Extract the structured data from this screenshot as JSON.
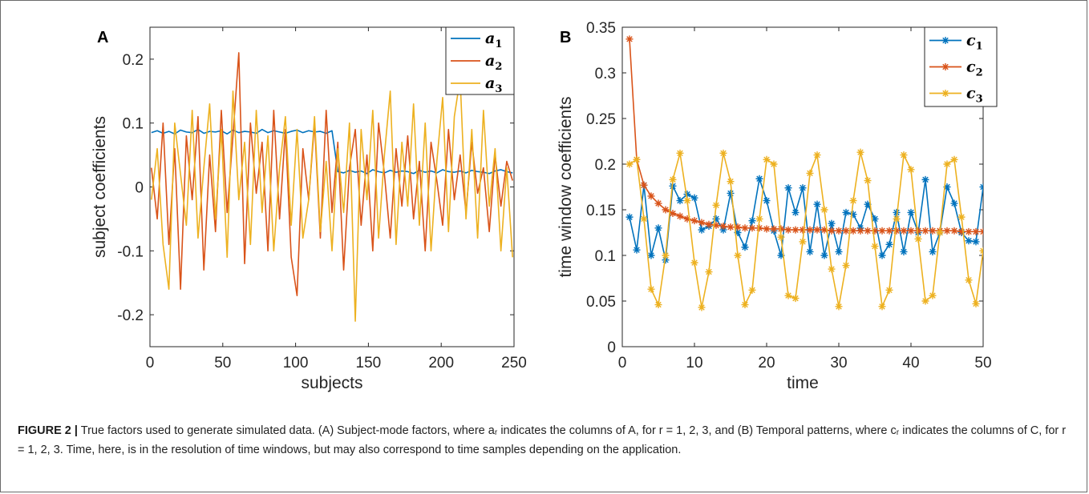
{
  "caption": {
    "label": "FIGURE 2 |",
    "text": "True factors used to generate simulated data. (A) Subject-mode factors, where aᵣ indicates the columns of A, for r = 1, 2, 3, and (B) Temporal patterns, where cᵣ indicates the columns of C, for r = 1, 2, 3. Time, here, is in the resolution of time windows, but may also correspond to time samples depending on the application."
  },
  "chart_data": [
    {
      "panel_label": "A",
      "type": "line",
      "xlabel": "subjects",
      "ylabel": "subject coefficients",
      "xlim": [
        0,
        250
      ],
      "ylim": [
        -0.25,
        0.25
      ],
      "xticks": [
        0,
        50,
        100,
        150,
        200,
        250
      ],
      "xtick_labels": [
        "0",
        "50",
        "100",
        "150",
        "200",
        "250"
      ],
      "yticks": [
        -0.2,
        -0.1,
        0,
        0.1,
        0.2
      ],
      "ytick_labels": [
        "-0.2",
        "-0.1",
        "0",
        "0.1",
        "0.2"
      ],
      "grid": false,
      "legend_position": "top-right",
      "x": [
        1,
        5,
        9,
        13,
        17,
        21,
        25,
        29,
        33,
        37,
        41,
        45,
        49,
        53,
        57,
        61,
        65,
        69,
        73,
        77,
        81,
        85,
        89,
        93,
        97,
        101,
        105,
        109,
        113,
        117,
        121,
        125,
        129,
        133,
        137,
        141,
        145,
        149,
        153,
        157,
        161,
        165,
        169,
        173,
        177,
        181,
        185,
        189,
        193,
        197,
        201,
        205,
        209,
        213,
        217,
        221,
        225,
        229,
        233,
        237,
        241,
        245,
        249
      ],
      "series": [
        {
          "name": "a",
          "sub": "1",
          "color": "#0072BD",
          "values": [
            0.085,
            0.088,
            0.084,
            0.087,
            0.083,
            0.089,
            0.086,
            0.085,
            0.09,
            0.084,
            0.087,
            0.086,
            0.088,
            0.083,
            0.089,
            0.085,
            0.087,
            0.086,
            0.084,
            0.09,
            0.085,
            0.088,
            0.086,
            0.084,
            0.087,
            0.089,
            0.085,
            0.088,
            0.086,
            0.087,
            0.084,
            0.088,
            0.024,
            0.022,
            0.026,
            0.023,
            0.025,
            0.021,
            0.027,
            0.024,
            0.022,
            0.026,
            0.023,
            0.025,
            0.024,
            0.021,
            0.026,
            0.023,
            0.025,
            0.022,
            0.027,
            0.024,
            0.023,
            0.025,
            0.022,
            0.026,
            0.024,
            0.023,
            0.021,
            0.025,
            0.027,
            0.024,
            0.022
          ]
        },
        {
          "name": "a",
          "sub": "2",
          "color": "#D95319",
          "values": [
            0.03,
            -0.05,
            0.1,
            -0.09,
            0.06,
            -0.16,
            0.08,
            -0.02,
            0.11,
            -0.13,
            0.05,
            -0.07,
            0.12,
            -0.04,
            0.08,
            0.21,
            -0.12,
            0.1,
            -0.01,
            0.07,
            -0.1,
            0.12,
            -0.05,
            0.09,
            -0.11,
            -0.17,
            0.06,
            -0.02,
            0.1,
            -0.08,
            0.12,
            -0.04,
            0.07,
            -0.13,
            0.03,
            0.09,
            -0.06,
            0.05,
            -0.1,
            0.1,
            0.02,
            -0.08,
            0.06,
            -0.03,
            0.08,
            -0.05,
            0.04,
            -0.1,
            0.07,
            0.01,
            -0.06,
            0.09,
            -0.02,
            0.05,
            -0.04,
            0.07,
            -0.01,
            0.03,
            -0.07,
            0.05,
            -0.03,
            0.04,
            0.01
          ]
        },
        {
          "name": "a",
          "sub": "3",
          "color": "#EDB120",
          "values": [
            -0.02,
            0.06,
            -0.09,
            -0.16,
            0.1,
            0.02,
            -0.06,
            0.12,
            -0.08,
            0.03,
            0.13,
            -0.05,
            0.09,
            -0.11,
            0.15,
            -0.02,
            0.07,
            -0.09,
            0.12,
            -0.04,
            0.08,
            -0.1,
            0.03,
            0.11,
            -0.06,
            0.09,
            -0.08,
            -0.02,
            0.11,
            -0.07,
            0.04,
            -0.1,
            0.06,
            -0.04,
            0.1,
            -0.21,
            0.09,
            -0.02,
            0.12,
            -0.08,
            0.05,
            0.15,
            -0.09,
            0.07,
            -0.03,
            0.13,
            -0.06,
            0.1,
            -0.1,
            0.04,
            0.14,
            -0.07,
            0.11,
            0.17,
            -0.05,
            0.09,
            -0.08,
            0.12,
            -0.03,
            0.06,
            -0.1,
            0.03,
            -0.11
          ]
        }
      ]
    },
    {
      "panel_label": "B",
      "type": "line",
      "xlabel": "time",
      "ylabel": "time window coefficients",
      "xlim": [
        0,
        50
      ],
      "ylim": [
        0,
        0.35
      ],
      "xticks": [
        0,
        10,
        20,
        30,
        40,
        50
      ],
      "xtick_labels": [
        "0",
        "10",
        "20",
        "30",
        "40",
        "50"
      ],
      "yticks": [
        0,
        0.05,
        0.1,
        0.15,
        0.2,
        0.25,
        0.3,
        0.35
      ],
      "ytick_labels": [
        "0",
        "0.05",
        "0.1",
        "0.15",
        "0.2",
        "0.25",
        "0.3",
        "0.35"
      ],
      "grid": false,
      "legend_position": "top-right",
      "marker": "asterisk",
      "x": [
        1,
        2,
        3,
        4,
        5,
        6,
        7,
        8,
        9,
        10,
        11,
        12,
        13,
        14,
        15,
        16,
        17,
        18,
        19,
        20,
        21,
        22,
        23,
        24,
        25,
        26,
        27,
        28,
        29,
        30,
        31,
        32,
        33,
        34,
        35,
        36,
        37,
        38,
        39,
        40,
        41,
        42,
        43,
        44,
        45,
        46,
        47,
        48,
        49,
        50
      ],
      "series": [
        {
          "name": "c",
          "sub": "1",
          "color": "#0072BD",
          "values": [
            0.142,
            0.106,
            0.177,
            0.1,
            0.13,
            0.095,
            0.176,
            0.16,
            0.167,
            0.163,
            0.128,
            0.132,
            0.14,
            0.128,
            0.168,
            0.125,
            0.109,
            0.138,
            0.184,
            0.16,
            0.127,
            0.1,
            0.174,
            0.147,
            0.174,
            0.104,
            0.156,
            0.1,
            0.135,
            0.104,
            0.147,
            0.145,
            0.13,
            0.156,
            0.14,
            0.1,
            0.112,
            0.147,
            0.104,
            0.147,
            0.125,
            0.183,
            0.104,
            0.125,
            0.175,
            0.157,
            0.125,
            0.116,
            0.115,
            0.175
          ]
        },
        {
          "name": "c",
          "sub": "2",
          "color": "#D95319",
          "values": [
            0.337,
            0.205,
            0.177,
            0.165,
            0.157,
            0.15,
            0.146,
            0.143,
            0.14,
            0.138,
            0.136,
            0.134,
            0.133,
            0.132,
            0.131,
            0.131,
            0.13,
            0.13,
            0.13,
            0.129,
            0.129,
            0.129,
            0.128,
            0.128,
            0.128,
            0.128,
            0.128,
            0.128,
            0.127,
            0.127,
            0.127,
            0.127,
            0.127,
            0.127,
            0.127,
            0.127,
            0.127,
            0.127,
            0.127,
            0.127,
            0.127,
            0.127,
            0.127,
            0.127,
            0.127,
            0.127,
            0.126,
            0.126,
            0.126,
            0.126
          ]
        },
        {
          "name": "c",
          "sub": "3",
          "color": "#EDB120",
          "values": [
            0.2,
            0.205,
            0.14,
            0.063,
            0.046,
            0.1,
            0.183,
            0.212,
            0.16,
            0.092,
            0.043,
            0.082,
            0.155,
            0.212,
            0.181,
            0.1,
            0.046,
            0.062,
            0.14,
            0.205,
            0.2,
            0.12,
            0.056,
            0.053,
            0.115,
            0.19,
            0.21,
            0.15,
            0.085,
            0.044,
            0.089,
            0.16,
            0.213,
            0.182,
            0.11,
            0.044,
            0.062,
            0.14,
            0.21,
            0.194,
            0.118,
            0.05,
            0.056,
            0.125,
            0.2,
            0.205,
            0.142,
            0.073,
            0.047,
            0.105
          ]
        }
      ]
    }
  ]
}
